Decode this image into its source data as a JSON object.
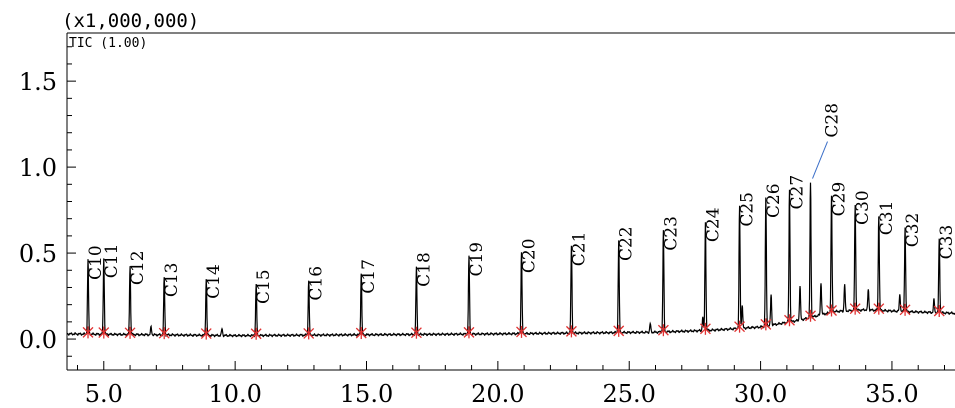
{
  "chart_data": {
    "type": "line",
    "scale_label": "(x1,000,000)",
    "trace_label": "TIC (1.00)",
    "xlim": [
      3.6,
      37.4
    ],
    "ylim": [
      -0.18,
      1.78
    ],
    "x_ticks": [
      {
        "value": 5,
        "label": "5.0"
      },
      {
        "value": 10,
        "label": "10.0"
      },
      {
        "value": 15,
        "label": "15.0"
      },
      {
        "value": 20,
        "label": "20.0"
      },
      {
        "value": 25,
        "label": "25.0"
      },
      {
        "value": 30,
        "label": "30.0"
      },
      {
        "value": 35,
        "label": "35.0"
      }
    ],
    "y_ticks": [
      {
        "value": 0,
        "label": "0.0"
      },
      {
        "value": 0.5,
        "label": "0.5"
      },
      {
        "value": 1.0,
        "label": "1.0"
      },
      {
        "value": 1.5,
        "label": "1.5"
      }
    ],
    "peaks": [
      {
        "label": "C10",
        "x": 4.4,
        "y": 0.46
      },
      {
        "label": "C11",
        "x": 5.0,
        "y": 0.47
      },
      {
        "label": "C12",
        "x": 6.0,
        "y": 0.43
      },
      {
        "label": "C13",
        "x": 7.3,
        "y": 0.36
      },
      {
        "label": "C14",
        "x": 8.9,
        "y": 0.35
      },
      {
        "label": "C15",
        "x": 10.8,
        "y": 0.32
      },
      {
        "label": "C16",
        "x": 12.8,
        "y": 0.34
      },
      {
        "label": "C17",
        "x": 14.8,
        "y": 0.38
      },
      {
        "label": "C18",
        "x": 16.9,
        "y": 0.42
      },
      {
        "label": "C19",
        "x": 18.9,
        "y": 0.48
      },
      {
        "label": "C20",
        "x": 20.9,
        "y": 0.5
      },
      {
        "label": "C21",
        "x": 22.8,
        "y": 0.54
      },
      {
        "label": "C22",
        "x": 24.6,
        "y": 0.57
      },
      {
        "label": "C23",
        "x": 26.3,
        "y": 0.63
      },
      {
        "label": "C24",
        "x": 27.9,
        "y": 0.68
      },
      {
        "label": "C25",
        "x": 29.2,
        "y": 0.77
      },
      {
        "label": "C26",
        "x": 30.2,
        "y": 0.82
      },
      {
        "label": "C27",
        "x": 31.1,
        "y": 0.87
      },
      {
        "label": "C28",
        "x": 31.9,
        "y": 0.91
      },
      {
        "label": "C29",
        "x": 32.7,
        "y": 0.83
      },
      {
        "label": "C30",
        "x": 33.6,
        "y": 0.78
      },
      {
        "label": "C31",
        "x": 34.5,
        "y": 0.72
      },
      {
        "label": "C32",
        "x": 35.5,
        "y": 0.65
      },
      {
        "label": "C33",
        "x": 36.8,
        "y": 0.58
      }
    ],
    "minor_peaks": [
      {
        "x": 6.8,
        "y": 0.07
      },
      {
        "x": 9.5,
        "y": 0.06
      },
      {
        "x": 25.8,
        "y": 0.09
      },
      {
        "x": 27.8,
        "y": 0.13
      },
      {
        "x": 29.3,
        "y": 0.2
      },
      {
        "x": 30.4,
        "y": 0.26
      },
      {
        "x": 31.5,
        "y": 0.31
      },
      {
        "x": 32.3,
        "y": 0.33
      },
      {
        "x": 33.2,
        "y": 0.32
      },
      {
        "x": 34.1,
        "y": 0.29
      },
      {
        "x": 35.3,
        "y": 0.26
      },
      {
        "x": 36.6,
        "y": 0.23
      }
    ],
    "baseline": [
      {
        "x": 3.6,
        "y": 0.03
      },
      {
        "x": 10.0,
        "y": 0.02
      },
      {
        "x": 20.0,
        "y": 0.03
      },
      {
        "x": 26.0,
        "y": 0.04
      },
      {
        "x": 28.0,
        "y": 0.05
      },
      {
        "x": 30.0,
        "y": 0.07
      },
      {
        "x": 31.5,
        "y": 0.11
      },
      {
        "x": 32.8,
        "y": 0.16
      },
      {
        "x": 34.0,
        "y": 0.17
      },
      {
        "x": 35.5,
        "y": 0.16
      },
      {
        "x": 37.4,
        "y": 0.15
      }
    ],
    "colors": {
      "trace": "#000000",
      "marker": "#e03030",
      "callout": "#3a6ec8"
    },
    "grid": false,
    "legend": "none"
  }
}
